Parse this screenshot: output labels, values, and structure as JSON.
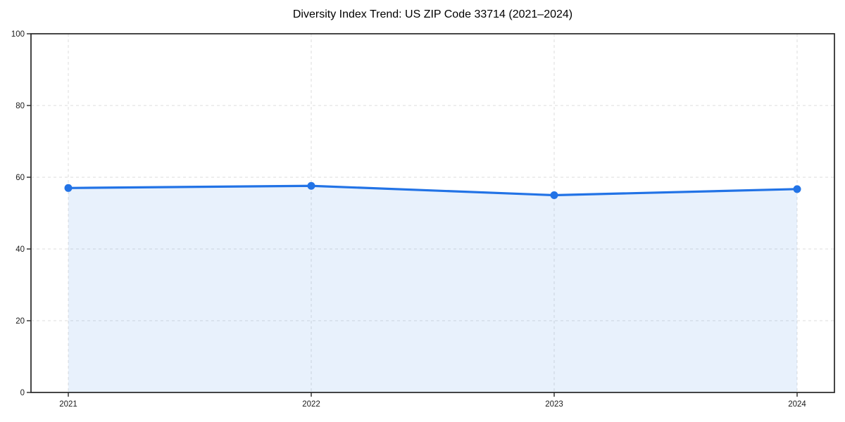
{
  "chart_data": {
    "type": "area",
    "title": "Diversity Index Trend: US ZIP Code 33714 (2021–2024)",
    "categories": [
      "2021",
      "2022",
      "2023",
      "2024"
    ],
    "series": [
      {
        "name": "Diversity Index",
        "values": [
          57.0,
          57.6,
          55.0,
          56.7
        ]
      }
    ],
    "xlabel": "",
    "ylabel": "",
    "ylim": [
      0,
      100
    ],
    "yticks": [
      0,
      20,
      40,
      60,
      80,
      100
    ],
    "grid": true,
    "grid_style": "dashed",
    "legend": "none",
    "marker": "circle",
    "colors": {
      "line": "#2273e6",
      "marker": "#2273e6",
      "fill": "rgba(34,115,230,0.10)",
      "grid": "#dedede",
      "spine": "#262626",
      "tick_label": "#1a1a1a",
      "title": "#000000",
      "background": "#ffffff"
    }
  }
}
